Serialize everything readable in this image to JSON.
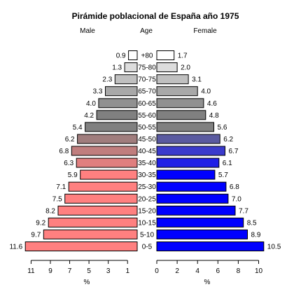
{
  "chart_data": {
    "type": "bar",
    "title": "Pirámide poblacional de España año 1975",
    "left_header": "Male",
    "center_header": "Age",
    "right_header": "Female",
    "xlabel_left": "%",
    "xlabel_right": "%",
    "categories": [
      "0-5",
      "5-10",
      "10-15",
      "15-20",
      "20-25",
      "25-30",
      "30-35",
      "35-40",
      "40-45",
      "45-50",
      "50-55",
      "55-60",
      "60-65",
      "65-70",
      "70-75",
      "75-80",
      "+80"
    ],
    "series": [
      {
        "name": "Male",
        "values": [
          11.6,
          9.7,
          9.2,
          8.2,
          7.5,
          7.1,
          5.9,
          6.3,
          6.8,
          6.2,
          5.4,
          4.2,
          4.0,
          3.3,
          2.3,
          1.3,
          0.9
        ],
        "colors": [
          "#ff8080",
          "#ff8080",
          "#ff8080",
          "#ff8080",
          "#ff8080",
          "#ff8080",
          "#ff8080",
          "#e07f7f",
          "#c07e7e",
          "#a07d7d",
          "#808080",
          "#808080",
          "#909090",
          "#a8a8a8",
          "#c0c0c0",
          "#dddddd",
          "#ffffff"
        ]
      },
      {
        "name": "Female",
        "values": [
          10.5,
          8.9,
          8.5,
          7.7,
          7.0,
          6.8,
          5.7,
          6.1,
          6.7,
          6.2,
          5.6,
          4.8,
          4.6,
          4.0,
          3.1,
          2.0,
          1.7
        ],
        "colors": [
          "#0000ff",
          "#0000ff",
          "#0000ff",
          "#0000ff",
          "#0000ff",
          "#0000ff",
          "#0000ff",
          "#2020e6",
          "#3b3bcc",
          "#5a5aa0",
          "#808080",
          "#808080",
          "#909090",
          "#a8a8a8",
          "#c0c0c0",
          "#dddddd",
          "#ffffff"
        ]
      }
    ],
    "left_ticks": [
      11,
      9,
      7,
      5,
      3,
      1
    ],
    "right_ticks": [
      0,
      2,
      4,
      6,
      8,
      10
    ],
    "xlim_left": [
      0,
      12
    ],
    "xlim_right": [
      0,
      11
    ],
    "legend": "none",
    "grid": false
  }
}
